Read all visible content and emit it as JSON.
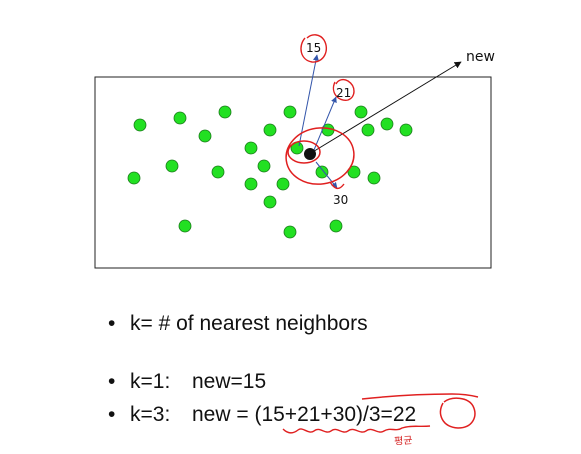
{
  "diagram": {
    "query_label": "new",
    "neighbor_labels": [
      "15",
      "21",
      "30"
    ],
    "colors": {
      "point": "#22e022",
      "query": "#111111",
      "arrow": "#3355aa",
      "annotation": "#e02020"
    }
  },
  "bullets": [
    {
      "bullet": "•",
      "text": "k= # of nearest neighbors"
    },
    {
      "bullet": "•",
      "label": "k=1:",
      "text": "new=15"
    },
    {
      "bullet": "•",
      "label": "k=3:",
      "text": "new = (15+21+30)/3=22"
    }
  ],
  "handwritten_note": "평균"
}
